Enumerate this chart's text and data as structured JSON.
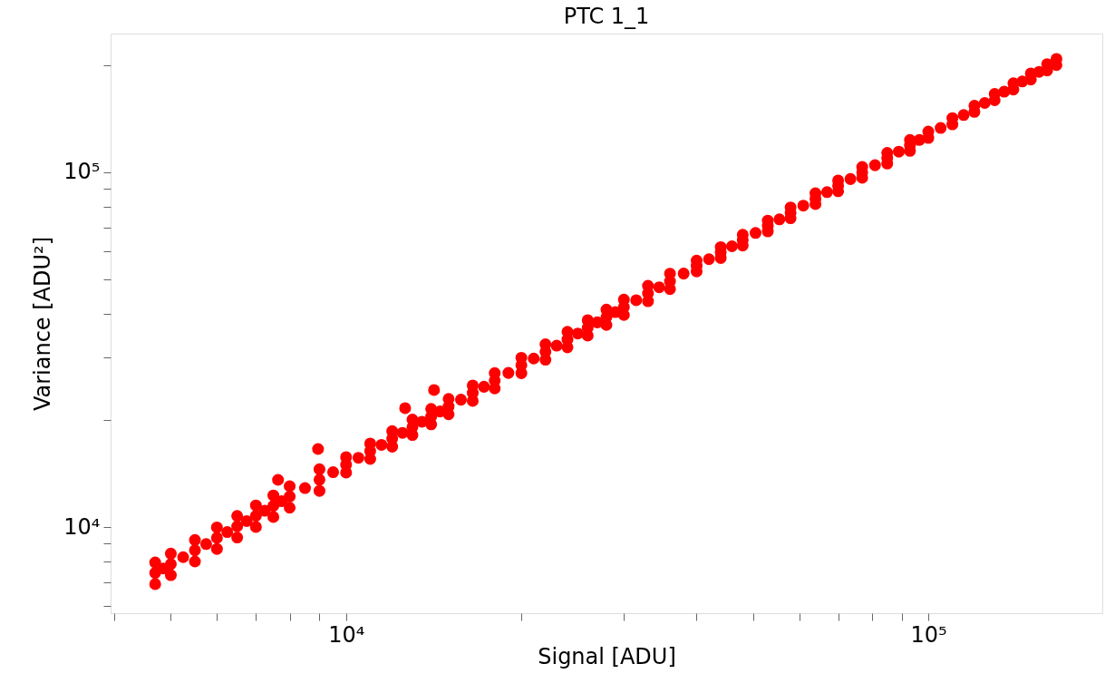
{
  "chart_data": {
    "type": "scatter",
    "title": "PTC 1_1",
    "xlabel": "Signal [ADU]",
    "ylabel": "Variance [ADU²]",
    "log": "xy",
    "grid": false,
    "marker": "circle",
    "xlim": [
      3940,
      199000
    ],
    "ylim": [
      5720,
      246000
    ],
    "xticks": [
      {
        "value": 4000,
        "label": null
      },
      {
        "value": 5000,
        "label": null
      },
      {
        "value": 6000,
        "label": null
      },
      {
        "value": 7000,
        "label": null
      },
      {
        "value": 8000,
        "label": null
      },
      {
        "value": 9000,
        "label": null
      },
      {
        "value": 10000,
        "label": "10⁴"
      },
      {
        "value": 20000,
        "label": null
      },
      {
        "value": 30000,
        "label": null
      },
      {
        "value": 40000,
        "label": null
      },
      {
        "value": 50000,
        "label": null
      },
      {
        "value": 60000,
        "label": null
      },
      {
        "value": 70000,
        "label": null
      },
      {
        "value": 80000,
        "label": null
      },
      {
        "value": 90000,
        "label": null
      },
      {
        "value": 100000,
        "label": "10⁵"
      }
    ],
    "yticks": [
      {
        "value": 6000,
        "label": null
      },
      {
        "value": 7000,
        "label": null
      },
      {
        "value": 8000,
        "label": null
      },
      {
        "value": 9000,
        "label": null
      },
      {
        "value": 10000,
        "label": "10⁴"
      },
      {
        "value": 20000,
        "label": null
      },
      {
        "value": 30000,
        "label": null
      },
      {
        "value": 40000,
        "label": null
      },
      {
        "value": 50000,
        "label": null
      },
      {
        "value": 60000,
        "label": null
      },
      {
        "value": 70000,
        "label": null
      },
      {
        "value": 80000,
        "label": null
      },
      {
        "value": 90000,
        "label": null
      },
      {
        "value": 100000,
        "label": "10⁵"
      },
      {
        "value": 200000,
        "label": null
      }
    ],
    "series": [
      {
        "color": "#ff0000",
        "x": [
          4700,
          4700,
          4700,
          5000,
          5000,
          5000,
          5500,
          5500,
          5500,
          6000,
          6000,
          6000,
          6500,
          6500,
          6500,
          7000,
          7000,
          7000,
          7500,
          7500,
          7500,
          8000,
          8000,
          8000,
          9000,
          9000,
          9000,
          10000,
          10000,
          10000,
          11000,
          11000,
          11000,
          12000,
          12000,
          12000,
          13000,
          13000,
          13000,
          14000,
          14000,
          14000,
          15000,
          15000,
          15000,
          16500,
          16500,
          16500,
          18000,
          18000,
          18000,
          20000,
          20000,
          20000,
          22000,
          22000,
          22000,
          24000,
          24000,
          24000,
          26000,
          26000,
          26000,
          28000,
          28000,
          28000,
          30000,
          30000,
          30000,
          33000,
          33000,
          33000,
          36000,
          36000,
          36000,
          40000,
          40000,
          40000,
          44000,
          44000,
          44000,
          48000,
          48000,
          48000,
          53000,
          53000,
          53000,
          58000,
          58000,
          58000,
          64000,
          64000,
          64000,
          70000,
          70000,
          70000,
          77000,
          77000,
          77000,
          85000,
          85000,
          85000,
          93000,
          93000,
          93000,
          100000,
          100000,
          110000,
          110000,
          120000,
          120000,
          130000,
          130000,
          140000,
          140000,
          150000,
          150000,
          160000,
          160000,
          166000,
          166000,
          8950,
          12630,
          14160,
          7640,
          4850,
          5250,
          5750,
          6250,
          6750,
          7250,
          7750,
          8500,
          9500,
          10500,
          11500,
          12500,
          13500,
          14500,
          15750,
          17250,
          19000,
          21000,
          23000,
          25000,
          27000,
          29000,
          31500,
          34500,
          38000,
          42000,
          46000,
          50500,
          55500,
          61000,
          67000,
          73500,
          81000,
          89000,
          96500,
          105000,
          115000,
          125000,
          135000,
          145000,
          155000
        ],
        "values": [
          7430,
          7950,
          6910,
          7870,
          8420,
          7320,
          8600,
          9200,
          8000,
          9330,
          9980,
          8680,
          10050,
          10750,
          9350,
          10760,
          11510,
          10010,
          11480,
          12280,
          10680,
          12190,
          13040,
          11340,
          13600,
          14550,
          12650,
          15000,
          15750,
          14250,
          16380,
          17200,
          15560,
          17750,
          18640,
          16860,
          19140,
          20100,
          18180,
          20500,
          21530,
          19480,
          21880,
          22970,
          20790,
          23880,
          25070,
          22690,
          25880,
          27170,
          24590,
          28580,
          30010,
          27150,
          31190,
          32750,
          29630,
          33810,
          35500,
          32120,
          36480,
          38300,
          34660,
          39080,
          41030,
          37130,
          41690,
          43770,
          39610,
          45600,
          47880,
          43320,
          49320,
          51790,
          46850,
          54450,
          56360,
          52540,
          59430,
          61510,
          57350,
          64420,
          66670,
          62170,
          70630,
          73100,
          68160,
          76910,
          79600,
          74220,
          84330,
          87280,
          81380,
          91620,
          94830,
          88410,
          100000,
          103500,
          96500,
          109600,
          113400,
          105800,
          119100,
          123300,
          114900,
          130200,
          125000,
          142100,
          136500,
          154000,
          148000,
          166200,
          159600,
          178100,
          171100,
          189900,
          182500,
          201700,
          193700,
          208700,
          200500,
          16600,
          21640,
          24340,
          13590,
          7647,
          8227,
          8958,
          9684,
          10400,
          11120,
          11830,
          12880,
          14280,
          15680,
          17050,
          18430,
          19810,
          21180,
          22860,
          24860,
          27200,
          29860,
          32470,
          35120,
          37760,
          40360,
          43600,
          47420,
          51820,
          56890,
          61870,
          67450,
          73700,
          80540,
          87900,
          95720,
          104700,
          114300,
          123300,
          133300,
          145000,
          156800,
          168700,
          180300,
          191900
        ]
      }
    ]
  }
}
